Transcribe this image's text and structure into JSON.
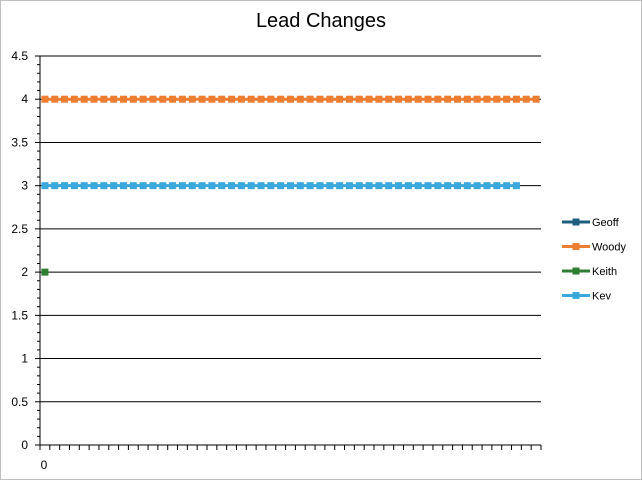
{
  "chart_data": {
    "type": "line",
    "title": "Lead Changes",
    "xlabel": "",
    "ylabel": "",
    "ylim": [
      0,
      4.5
    ],
    "y_ticks": [
      "0",
      "0.5",
      "1",
      "1.5",
      "2",
      "2.5",
      "3",
      "3.5",
      "4",
      "4.5"
    ],
    "x_tick_labels": [
      "0"
    ],
    "x_count": 51,
    "grid": "horizontal",
    "legend_position": "right",
    "series": [
      {
        "name": "Geoff",
        "color": "#1f5e7e",
        "start": 0,
        "values": []
      },
      {
        "name": "Woody",
        "color": "#ed7d31",
        "start": 0,
        "values": [
          4,
          4,
          4,
          4,
          4,
          4,
          4,
          4,
          4,
          4,
          4,
          4,
          4,
          4,
          4,
          4,
          4,
          4,
          4,
          4,
          4,
          4,
          4,
          4,
          4,
          4,
          4,
          4,
          4,
          4,
          4,
          4,
          4,
          4,
          4,
          4,
          4,
          4,
          4,
          4,
          4,
          4,
          4,
          4,
          4,
          4,
          4,
          4,
          4,
          4,
          4
        ]
      },
      {
        "name": "Keith",
        "color": "#2e7d32",
        "start": 0,
        "values": [
          2
        ]
      },
      {
        "name": "Kev",
        "color": "#3aa8dc",
        "start": 0,
        "values": [
          3,
          3,
          3,
          3,
          3,
          3,
          3,
          3,
          3,
          3,
          3,
          3,
          3,
          3,
          3,
          3,
          3,
          3,
          3,
          3,
          3,
          3,
          3,
          3,
          3,
          3,
          3,
          3,
          3,
          3,
          3,
          3,
          3,
          3,
          3,
          3,
          3,
          3,
          3,
          3,
          3,
          3,
          3,
          3,
          3,
          3,
          3,
          3,
          3
        ]
      }
    ]
  }
}
